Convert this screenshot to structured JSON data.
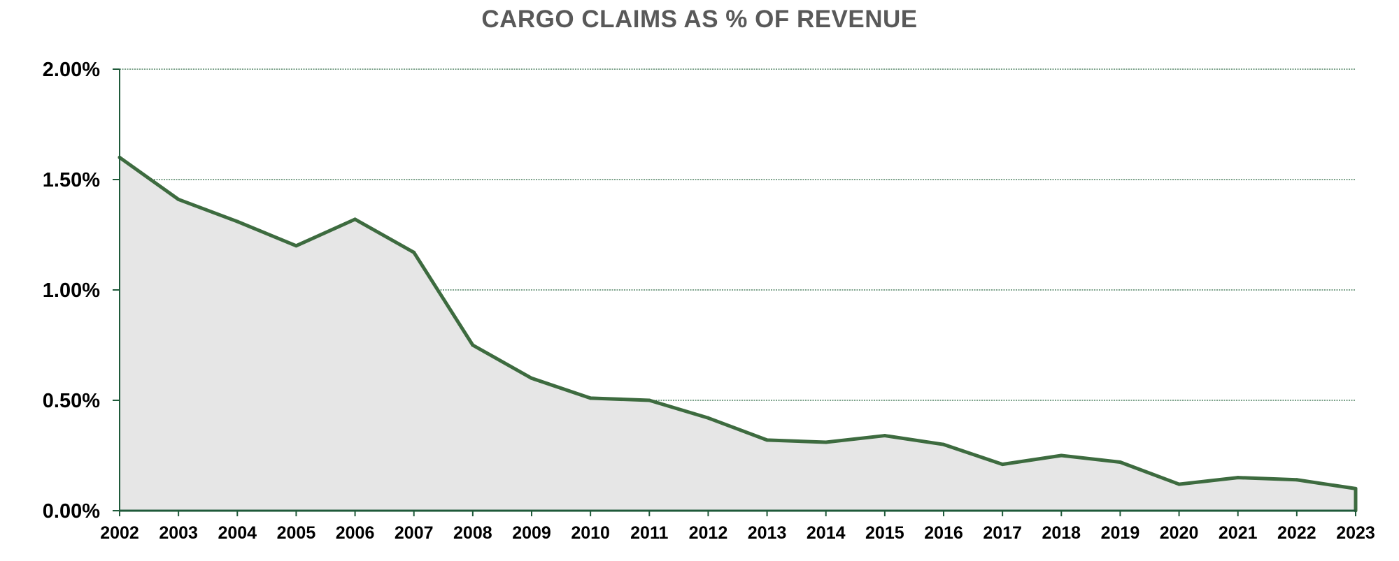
{
  "chart_data": {
    "type": "area",
    "title": "CARGO CLAIMS AS % OF REVENUE",
    "xlabel": "",
    "ylabel": "",
    "x": [
      "2002",
      "2003",
      "2004",
      "2005",
      "2006",
      "2007",
      "2008",
      "2009",
      "2010",
      "2011",
      "2012",
      "2013",
      "2014",
      "2015",
      "2016",
      "2017",
      "2018",
      "2019",
      "2020",
      "2021",
      "2022",
      "2023"
    ],
    "series": [
      {
        "values": [
          1.6,
          1.41,
          1.31,
          1.2,
          1.32,
          1.17,
          0.75,
          0.6,
          0.51,
          0.5,
          0.42,
          0.32,
          0.31,
          0.34,
          0.3,
          0.21,
          0.25,
          0.22,
          0.12,
          0.15,
          0.14,
          0.1
        ]
      }
    ],
    "ylim": [
      0,
      2.0
    ],
    "yticks": [
      0.0,
      0.5,
      1.0,
      1.5,
      2.0
    ],
    "ytick_labels": [
      "0.00%",
      "0.50%",
      "1.00%",
      "1.50%",
      "2.00%"
    ],
    "grid": true,
    "grid_axis": "y",
    "legend": "none",
    "colors": {
      "line": "#3d6b3f",
      "fill": "#e6e6e6",
      "axis": "#1f5a3a",
      "grid": "#2e6b45",
      "title": "#595959",
      "tick_text": "#000000"
    }
  }
}
